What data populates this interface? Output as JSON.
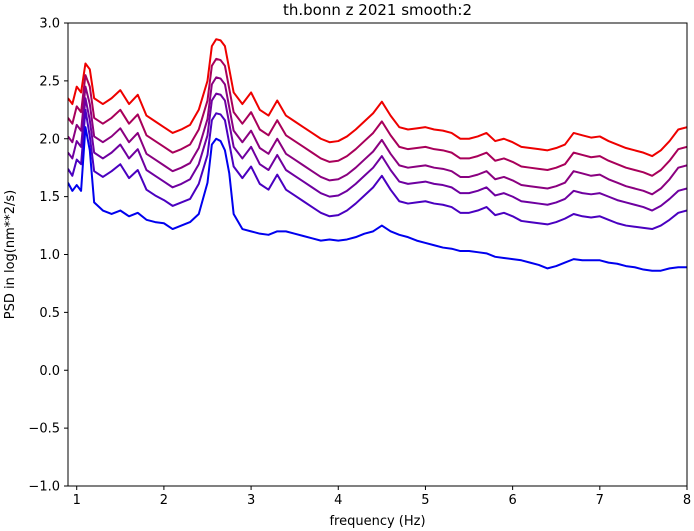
{
  "chart_data": {
    "type": "line",
    "title": "th.bonn z 2021 smooth:2",
    "xlabel": "frequency (Hz)",
    "ylabel": "PSD in log(nm**2/s)",
    "xlim": [
      0.9,
      8.0
    ],
    "ylim": [
      -1.0,
      3.0
    ],
    "xticks": [
      1,
      2,
      3,
      4,
      5,
      6,
      7,
      8
    ],
    "xtick_labels": [
      "1",
      "2",
      "3",
      "4",
      "5",
      "6",
      "7",
      "8"
    ],
    "yticks": [
      -1.0,
      -0.5,
      0.0,
      0.5,
      1.0,
      1.5,
      2.0,
      2.5,
      3.0
    ],
    "ytick_labels": [
      "−1.0",
      "−0.5",
      "0.0",
      "0.5",
      "1.0",
      "1.5",
      "2.0",
      "2.5",
      "3.0"
    ],
    "grid": false,
    "legend": "none",
    "x": [
      0.9,
      0.95,
      1.0,
      1.05,
      1.1,
      1.15,
      1.2,
      1.3,
      1.4,
      1.5,
      1.6,
      1.7,
      1.8,
      1.9,
      2.0,
      2.1,
      2.2,
      2.3,
      2.4,
      2.5,
      2.55,
      2.6,
      2.65,
      2.7,
      2.75,
      2.8,
      2.9,
      3.0,
      3.1,
      3.2,
      3.3,
      3.4,
      3.5,
      3.6,
      3.7,
      3.8,
      3.9,
      4.0,
      4.1,
      4.2,
      4.3,
      4.4,
      4.5,
      4.6,
      4.7,
      4.8,
      4.9,
      5.0,
      5.1,
      5.2,
      5.3,
      5.4,
      5.5,
      5.6,
      5.7,
      5.8,
      5.9,
      6.0,
      6.1,
      6.2,
      6.3,
      6.4,
      6.5,
      6.6,
      6.7,
      6.8,
      6.9,
      7.0,
      7.1,
      7.2,
      7.3,
      7.4,
      7.5,
      7.6,
      7.7,
      7.8,
      7.9,
      8.0
    ],
    "series": [
      {
        "color": "#ee0000",
        "values": [
          2.35,
          2.3,
          2.45,
          2.4,
          2.65,
          2.6,
          2.35,
          2.3,
          2.35,
          2.42,
          2.3,
          2.38,
          2.2,
          2.15,
          2.1,
          2.05,
          2.08,
          2.12,
          2.25,
          2.5,
          2.8,
          2.86,
          2.85,
          2.8,
          2.6,
          2.4,
          2.3,
          2.4,
          2.25,
          2.2,
          2.33,
          2.2,
          2.15,
          2.1,
          2.05,
          2.0,
          1.97,
          1.98,
          2.02,
          2.08,
          2.15,
          2.22,
          2.32,
          2.2,
          2.1,
          2.08,
          2.09,
          2.1,
          2.08,
          2.07,
          2.05,
          2.0,
          2.0,
          2.02,
          2.05,
          1.98,
          2.0,
          1.97,
          1.93,
          1.92,
          1.91,
          1.9,
          1.92,
          1.95,
          2.05,
          2.03,
          2.01,
          2.02,
          1.98,
          1.95,
          1.92,
          1.9,
          1.88,
          1.85,
          1.9,
          1.98,
          2.08,
          2.1
        ]
      },
      {
        "color": "#a8005a",
        "values": [
          2.18,
          2.13,
          2.28,
          2.23,
          2.55,
          2.45,
          2.18,
          2.13,
          2.18,
          2.25,
          2.13,
          2.21,
          2.03,
          1.98,
          1.93,
          1.88,
          1.91,
          1.95,
          2.08,
          2.33,
          2.63,
          2.69,
          2.68,
          2.63,
          2.43,
          2.23,
          2.13,
          2.23,
          2.08,
          2.03,
          2.16,
          2.03,
          1.98,
          1.93,
          1.88,
          1.83,
          1.8,
          1.81,
          1.85,
          1.91,
          1.98,
          2.05,
          2.15,
          2.03,
          1.93,
          1.91,
          1.92,
          1.93,
          1.91,
          1.9,
          1.88,
          1.83,
          1.83,
          1.85,
          1.88,
          1.81,
          1.83,
          1.8,
          1.76,
          1.75,
          1.74,
          1.73,
          1.75,
          1.78,
          1.88,
          1.86,
          1.84,
          1.85,
          1.81,
          1.78,
          1.75,
          1.73,
          1.71,
          1.68,
          1.73,
          1.81,
          1.91,
          1.93
        ]
      },
      {
        "color": "#8a0080",
        "values": [
          2.02,
          1.97,
          2.12,
          2.07,
          2.45,
          2.3,
          2.02,
          1.97,
          2.02,
          2.09,
          1.97,
          2.05,
          1.87,
          1.82,
          1.77,
          1.72,
          1.75,
          1.79,
          1.92,
          2.17,
          2.47,
          2.53,
          2.52,
          2.47,
          2.27,
          2.07,
          1.97,
          2.07,
          1.92,
          1.87,
          2.0,
          1.87,
          1.82,
          1.77,
          1.72,
          1.67,
          1.64,
          1.65,
          1.69,
          1.75,
          1.82,
          1.89,
          1.99,
          1.87,
          1.77,
          1.75,
          1.76,
          1.77,
          1.75,
          1.74,
          1.72,
          1.67,
          1.67,
          1.69,
          1.72,
          1.65,
          1.67,
          1.64,
          1.6,
          1.59,
          1.58,
          1.57,
          1.59,
          1.62,
          1.72,
          1.7,
          1.68,
          1.69,
          1.65,
          1.62,
          1.59,
          1.57,
          1.55,
          1.52,
          1.57,
          1.65,
          1.75,
          1.77
        ]
      },
      {
        "color": "#6e00a0",
        "values": [
          1.88,
          1.83,
          1.98,
          1.93,
          2.35,
          2.16,
          1.88,
          1.83,
          1.88,
          1.95,
          1.83,
          1.91,
          1.73,
          1.68,
          1.63,
          1.58,
          1.61,
          1.65,
          1.78,
          2.03,
          2.33,
          2.39,
          2.38,
          2.33,
          2.13,
          1.93,
          1.83,
          1.93,
          1.78,
          1.73,
          1.86,
          1.73,
          1.68,
          1.63,
          1.58,
          1.53,
          1.5,
          1.51,
          1.55,
          1.61,
          1.68,
          1.75,
          1.85,
          1.73,
          1.63,
          1.61,
          1.62,
          1.63,
          1.61,
          1.6,
          1.58,
          1.53,
          1.53,
          1.55,
          1.58,
          1.51,
          1.53,
          1.5,
          1.46,
          1.45,
          1.44,
          1.43,
          1.45,
          1.48,
          1.55,
          1.53,
          1.52,
          1.53,
          1.5,
          1.47,
          1.45,
          1.43,
          1.41,
          1.38,
          1.42,
          1.48,
          1.55,
          1.57
        ]
      },
      {
        "color": "#4a00c0",
        "values": [
          1.74,
          1.68,
          1.82,
          1.78,
          2.25,
          2.02,
          1.72,
          1.67,
          1.72,
          1.78,
          1.66,
          1.73,
          1.56,
          1.51,
          1.47,
          1.42,
          1.45,
          1.48,
          1.61,
          1.86,
          2.16,
          2.22,
          2.21,
          2.16,
          1.96,
          1.76,
          1.66,
          1.76,
          1.61,
          1.56,
          1.69,
          1.56,
          1.51,
          1.46,
          1.41,
          1.36,
          1.33,
          1.34,
          1.38,
          1.44,
          1.51,
          1.58,
          1.68,
          1.56,
          1.46,
          1.44,
          1.45,
          1.46,
          1.44,
          1.43,
          1.41,
          1.36,
          1.36,
          1.38,
          1.41,
          1.34,
          1.36,
          1.33,
          1.29,
          1.28,
          1.27,
          1.26,
          1.28,
          1.31,
          1.35,
          1.33,
          1.32,
          1.33,
          1.3,
          1.27,
          1.25,
          1.24,
          1.23,
          1.22,
          1.25,
          1.3,
          1.36,
          1.38
        ]
      },
      {
        "color": "#0000ee",
        "values": [
          1.62,
          1.55,
          1.6,
          1.55,
          2.1,
          1.9,
          1.45,
          1.38,
          1.35,
          1.38,
          1.33,
          1.36,
          1.3,
          1.28,
          1.27,
          1.22,
          1.25,
          1.28,
          1.35,
          1.62,
          1.95,
          2.0,
          1.98,
          1.9,
          1.7,
          1.35,
          1.22,
          1.2,
          1.18,
          1.17,
          1.2,
          1.2,
          1.18,
          1.16,
          1.14,
          1.12,
          1.13,
          1.12,
          1.13,
          1.15,
          1.18,
          1.2,
          1.25,
          1.2,
          1.17,
          1.15,
          1.12,
          1.1,
          1.08,
          1.06,
          1.05,
          1.03,
          1.03,
          1.02,
          1.01,
          0.98,
          0.97,
          0.96,
          0.95,
          0.93,
          0.91,
          0.88,
          0.9,
          0.93,
          0.96,
          0.95,
          0.95,
          0.95,
          0.93,
          0.92,
          0.9,
          0.89,
          0.87,
          0.86,
          0.86,
          0.88,
          0.89,
          0.89
        ]
      }
    ]
  }
}
